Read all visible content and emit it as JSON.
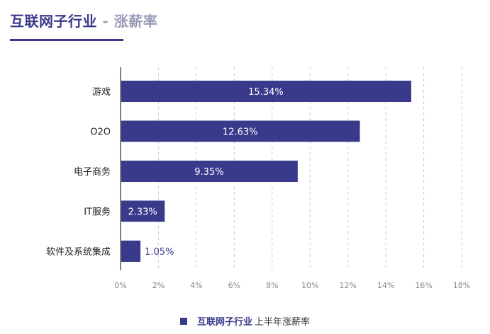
{
  "header": {
    "title_main": "互联网子行业",
    "title_sep": " - ",
    "title_sub": "涨薪率"
  },
  "legend": {
    "series_label": "互联网子行业",
    "suffix": "上半年涨薪率"
  },
  "colors": {
    "bar": "#3a3a8c",
    "axis": "#808080",
    "grid": "#cccccc",
    "label_inside": "#ffffff",
    "label_outside": "#3a3a8c"
  },
  "chart_data": {
    "type": "bar",
    "orientation": "horizontal",
    "categories": [
      "游戏",
      "O2O",
      "电子商务",
      "IT服务",
      "软件及系统集成"
    ],
    "values": [
      15.34,
      12.63,
      9.35,
      2.33,
      1.05
    ],
    "data_labels": [
      "15.34%",
      "12.63%",
      "9.35%",
      "2.33%",
      "1.05%"
    ],
    "xlim": [
      0,
      18
    ],
    "x_ticks": [
      0,
      2,
      4,
      6,
      8,
      10,
      12,
      14,
      16,
      18
    ],
    "x_tick_labels": [
      "0%",
      "2%",
      "4%",
      "6%",
      "8%",
      "10%",
      "12%",
      "14%",
      "16%",
      "18%"
    ],
    "grid": "vertical-dashed",
    "legend_position": "bottom-center"
  }
}
